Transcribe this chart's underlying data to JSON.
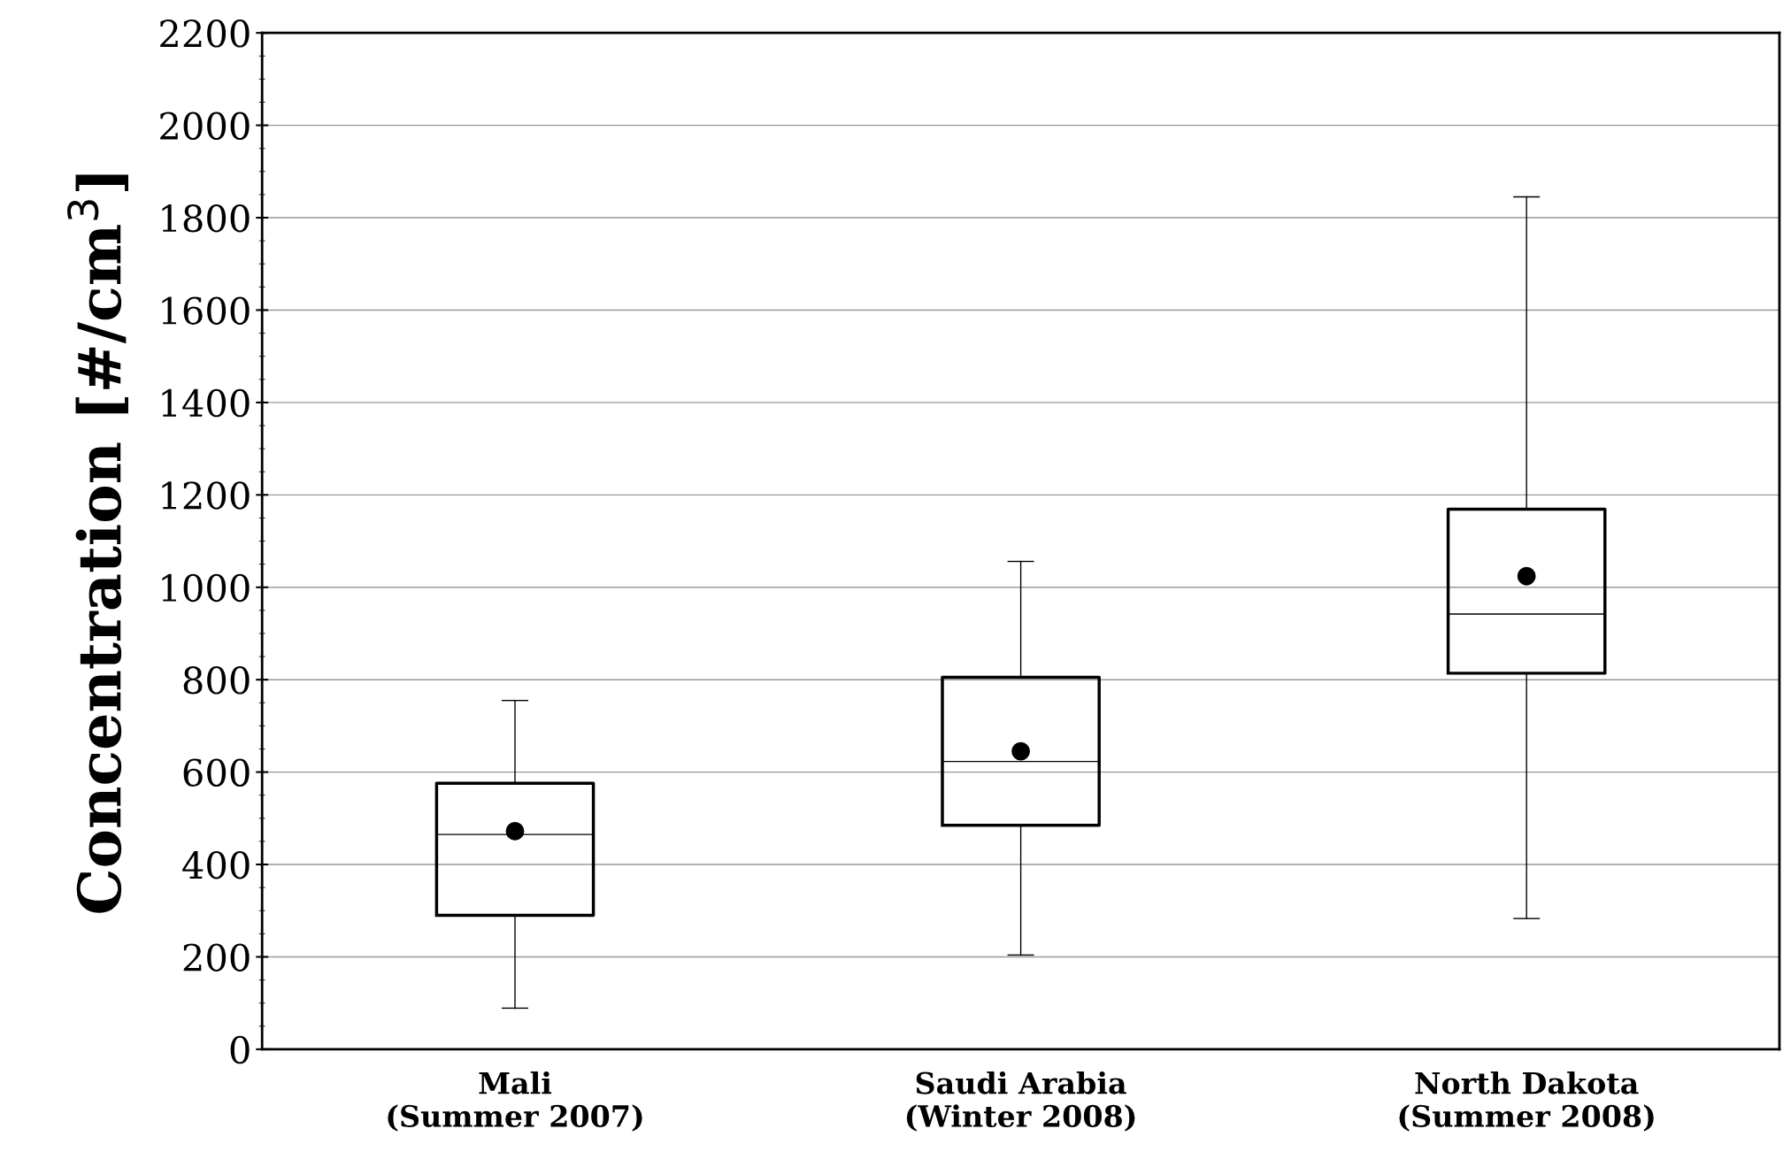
{
  "chart_data": {
    "type": "box",
    "ylabel": "Concentration [#/cm$^{3}$]",
    "categories": [
      "Mali\n(Summer 2007)",
      "Saudi Arabia\n(Winter 2008)",
      "North Dakota\n(Summer 2008)"
    ],
    "boxes": [
      {
        "low": 89,
        "q1": 290,
        "median": 465,
        "q3": 576,
        "high": 755,
        "mean": 472
      },
      {
        "low": 204,
        "q1": 485,
        "median": 623,
        "q3": 805,
        "high": 1056,
        "mean": 645
      },
      {
        "low": 283,
        "q1": 814,
        "median": 942,
        "q3": 1169,
        "high": 1845,
        "mean": 1024
      }
    ],
    "ylim": [
      0,
      2200
    ],
    "yticks": [
      0,
      200,
      400,
      600,
      800,
      1000,
      1200,
      1400,
      1600,
      1800,
      2000,
      2200
    ],
    "grid": "y",
    "marker": "circle",
    "legend": false
  }
}
